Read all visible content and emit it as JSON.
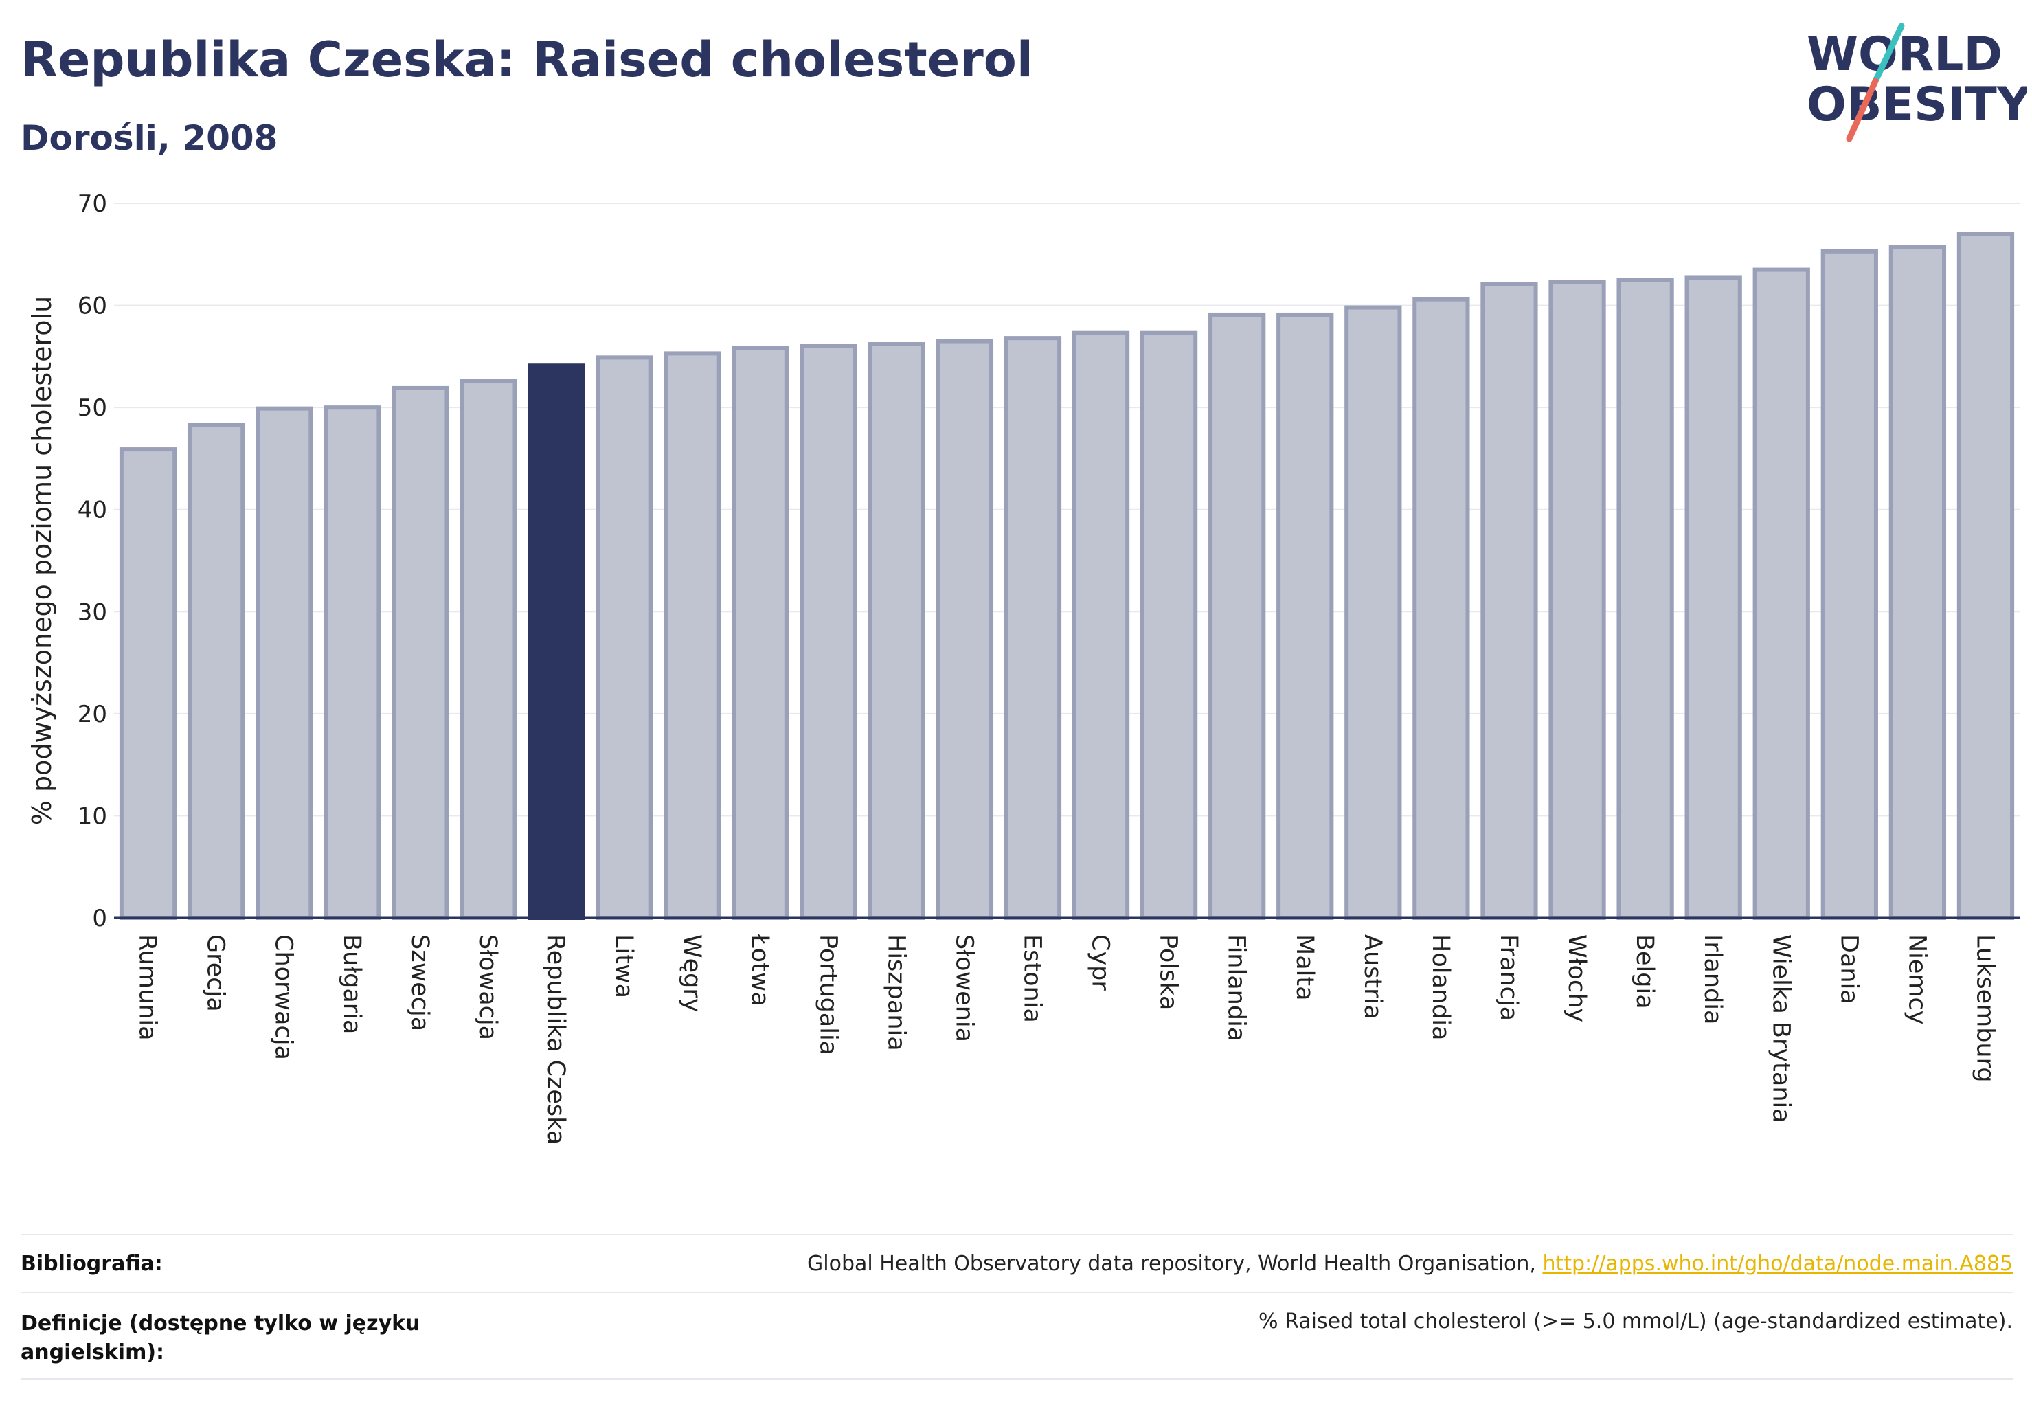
{
  "header": {
    "title": "Republika Czeska: Raised cholesterol",
    "subtitle": "Dorośli, 2008"
  },
  "logo": {
    "line1": "WORLD",
    "line2": "OBESITY",
    "icon": "world-obesity-logo"
  },
  "colors": {
    "bar_fill": "#c0c3d0",
    "bar_stroke": "#9aa0b8",
    "highlight_fill": "#2b3560",
    "grid": "#e8e8ee",
    "axis": "#2b3560",
    "link": "#e8b500"
  },
  "chart_data": {
    "type": "bar",
    "ylabel": "% podwyższonego poziomu cholesterolu",
    "ylim": [
      0,
      70
    ],
    "yticks": [
      0,
      10,
      20,
      30,
      40,
      50,
      60,
      70
    ],
    "grid": true,
    "highlight": "Republika Czeska",
    "categories": [
      "Rumunia",
      "Grecja",
      "Chorwacja",
      "Bułgaria",
      "Szwecja",
      "Słowacja",
      "Republika Czeska",
      "Litwa",
      "Węgry",
      "Łotwa",
      "Portugalia",
      "Hiszpania",
      "Słowenia",
      "Estonia",
      "Cypr",
      "Polska",
      "Finlandia",
      "Malta",
      "Austria",
      "Holandia",
      "Francja",
      "Włochy",
      "Belgia",
      "Irlandia",
      "Wielka Brytania",
      "Dania",
      "Niemcy",
      "Luksemburg"
    ],
    "values": [
      45.9,
      48.3,
      49.9,
      50.0,
      51.9,
      52.6,
      54.1,
      54.9,
      55.3,
      55.8,
      56.0,
      56.2,
      56.5,
      56.8,
      57.3,
      57.3,
      59.1,
      59.1,
      59.8,
      60.6,
      62.1,
      62.3,
      62.5,
      62.7,
      63.5,
      65.3,
      65.7,
      67.0
    ]
  },
  "footer": {
    "bibliography_label": "Bibliografia:",
    "bibliography_text": "Global Health Observatory data repository, World Health Organisation, ",
    "bibliography_link": "http://apps.who.int/gho/data/node.main.A885",
    "definitions_label": "Definicje (dostępne tylko w języku angielskim):",
    "definitions_text": "% Raised total cholesterol (>= 5.0 mmol/L) (age-standardized estimate)."
  }
}
